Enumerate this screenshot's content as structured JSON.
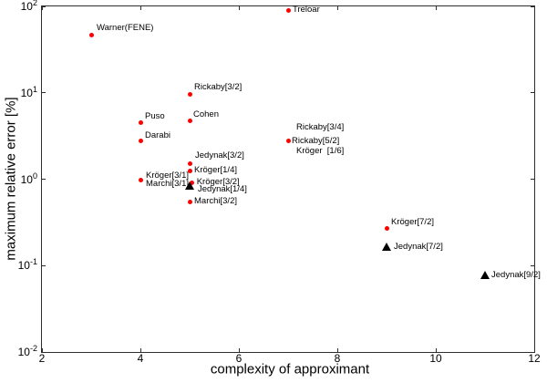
{
  "chart_data": {
    "type": "scatter",
    "title": "",
    "xlabel": "complexity of approximant",
    "ylabel": "maximum relative error [%]",
    "xlim": [
      2,
      12
    ],
    "ylim": [
      0.01,
      100
    ],
    "y_scale": "log",
    "grid": false,
    "legend": "none (points labeled inline)",
    "xticks": [
      2,
      4,
      6,
      8,
      10,
      12
    ],
    "ytick_exponents": [
      2,
      1,
      0,
      -1,
      -2
    ],
    "axis_color": "#2e2e2e",
    "series": [
      {
        "name": "circle-markers",
        "marker": "circle",
        "color": "#ff0000",
        "points": [
          {
            "x": 7,
            "y": 90,
            "labels": [
              {
                "text": "Treloar",
                "dx": 5,
                "dy": 0
              }
            ]
          },
          {
            "x": 3,
            "y": 47,
            "labels": [
              {
                "text": "Warner(FENE)",
                "dx": 6,
                "dy": -7
              }
            ]
          },
          {
            "x": 5,
            "y": 9.7,
            "labels": [
              {
                "text": "Rickaby[3/2]",
                "dx": 5,
                "dy": -7
              }
            ]
          },
          {
            "x": 5,
            "y": 4.7,
            "labels": [
              {
                "text": "Cohen",
                "dx": 4,
                "dy": -7
              }
            ]
          },
          {
            "x": 4,
            "y": 4.5,
            "labels": [
              {
                "text": "Puso",
                "dx": 5,
                "dy": -7
              }
            ]
          },
          {
            "x": 4,
            "y": 2.75,
            "labels": [
              {
                "text": "Darabi",
                "dx": 5,
                "dy": -6
              }
            ]
          },
          {
            "x": 7,
            "y": 2.75,
            "labels": [
              {
                "text": "Rickaby[3/4]",
                "dx": 9,
                "dy": -15
              },
              {
                "text": "Rickaby[5/2]",
                "dx": 4,
                "dy": 0
              },
              {
                "text": "Kröger  [1/6]",
                "dx": 9,
                "dy": 11
              }
            ]
          },
          {
            "x": 5,
            "y": 1.5,
            "labels": [
              {
                "text": "Jedynak[3/2]",
                "dx": 6,
                "dy": -9
              }
            ]
          },
          {
            "x": 5,
            "y": 1.25,
            "labels": [
              {
                "text": "Kröger[1/4]",
                "dx": 5,
                "dy": 0
              }
            ]
          },
          {
            "x": 4,
            "y": 0.97,
            "labels": [
              {
                "text": "Kröger[3/1]",
                "dx": 6,
                "dy": -5
              },
              {
                "text": "Marchi[3/1]",
                "dx": 6,
                "dy": 4
              }
            ]
          },
          {
            "x": 5.05,
            "y": 0.9,
            "labels": [
              {
                "text": "Kröger[3/2]",
                "dx": 5,
                "dy": -1
              }
            ]
          },
          {
            "x": 5,
            "y": 0.55,
            "labels": [
              {
                "text": "Marchi[3/2]",
                "dx": 5,
                "dy": 0
              }
            ]
          },
          {
            "x": 9,
            "y": 0.27,
            "labels": [
              {
                "text": "Kröger[7/2]",
                "dx": 5,
                "dy": -6
              }
            ]
          }
        ]
      },
      {
        "name": "triangle-markers",
        "marker": "triangle",
        "color": "#000000",
        "points": [
          {
            "x": 5,
            "y": 0.84,
            "labels": [
              {
                "text": "Jedynak[1/4]",
                "dx": 9,
                "dy": 4
              }
            ]
          },
          {
            "x": 9,
            "y": 0.165,
            "labels": [
              {
                "text": "Jedynak[7/2]",
                "dx": 8,
                "dy": 0
              }
            ]
          },
          {
            "x": 11,
            "y": 0.077,
            "labels": [
              {
                "text": "Jedynak[9/2]",
                "dx": 7,
                "dy": 0
              }
            ]
          }
        ]
      }
    ]
  }
}
